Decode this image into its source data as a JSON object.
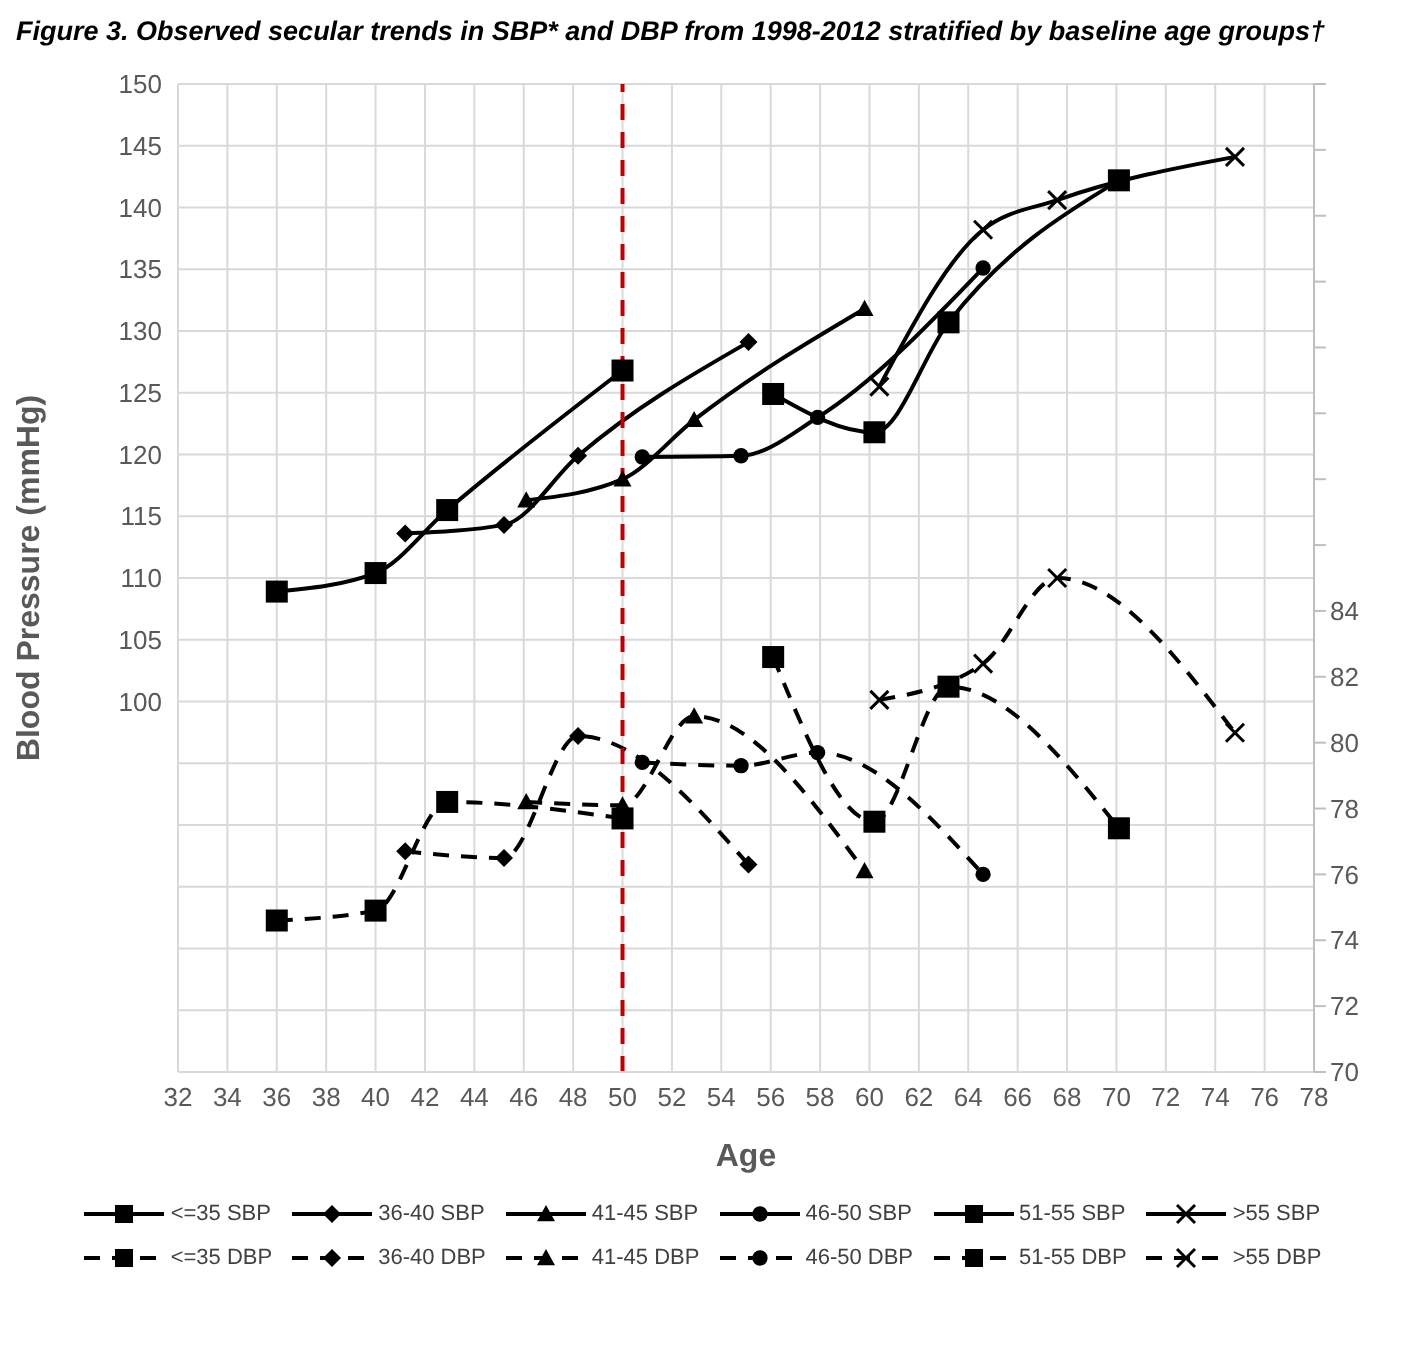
{
  "chart_data": {
    "type": "line",
    "title": "Figure 3. Observed secular trends in SBP* and DBP from 1998-2012 stratified by baseline age groups†",
    "xlabel": "Age",
    "ylabel": "Blood Pressure (mmHg)",
    "xlim": [
      32,
      78
    ],
    "xticks": [
      32,
      34,
      36,
      38,
      40,
      42,
      44,
      46,
      48,
      50,
      52,
      54,
      56,
      58,
      60,
      62,
      64,
      66,
      68,
      70,
      72,
      74,
      76,
      78
    ],
    "ylim": [
      70,
      150
    ],
    "yticks": [
      {
        "value": 70,
        "label": null
      },
      {
        "value": 75,
        "label": null
      },
      {
        "value": 80,
        "label": null
      },
      {
        "value": 85,
        "label": null
      },
      {
        "value": 90,
        "label": null
      },
      {
        "value": 95,
        "label": null
      },
      100,
      105,
      110,
      115,
      120,
      125,
      130,
      135,
      140,
      145,
      150
    ],
    "y2lim": [
      70,
      100
    ],
    "y2ticks": [
      70,
      72,
      74,
      76,
      78,
      80,
      82,
      84,
      {
        "value": 86,
        "label": null
      },
      {
        "value": 88,
        "label": null
      },
      {
        "value": 90,
        "label": null
      },
      {
        "value": 92,
        "label": null
      },
      {
        "value": 94,
        "label": null
      },
      {
        "value": 96,
        "label": null
      },
      {
        "value": 98,
        "label": null
      },
      {
        "value": 100,
        "label": null
      }
    ],
    "grid": true,
    "legend": "bottom",
    "ref_lines": [
      {
        "axis": "x",
        "value": 50,
        "color": "#c00000",
        "line_style": "dashed"
      }
    ],
    "series": [
      {
        "name": "<=35 SBP",
        "color": "#000000",
        "marker": "square",
        "line_style": "solid",
        "x": [
          36,
          40,
          42.9,
          50
        ],
        "values": [
          108.9,
          110.4,
          115.5,
          126.8
        ]
      },
      {
        "name": "36-40 SBP",
        "color": "#000000",
        "marker": "diamond",
        "line_style": "solid",
        "x": [
          41.2,
          45.2,
          48.2,
          55.1
        ],
        "values": [
          113.6,
          114.3,
          119.9,
          129.1
        ]
      },
      {
        "name": "41-45 SBP",
        "color": "#000000",
        "marker": "triangle",
        "line_style": "solid",
        "x": [
          46.1,
          50,
          52.9,
          59.8
        ],
        "values": [
          116.3,
          118,
          122.8,
          131.8
        ]
      },
      {
        "name": "46-50 SBP",
        "color": "#000000",
        "marker": "circle",
        "line_style": "solid",
        "x": [
          50.8,
          54.8,
          57.9,
          64.6
        ],
        "values": [
          119.8,
          119.9,
          123,
          135.1
        ]
      },
      {
        "name": "51-55 SBP",
        "color": "#000000",
        "marker": "square",
        "line_style": "solid",
        "x": [
          56.1,
          60.2,
          63.2,
          70.1
        ],
        "values": [
          124.9,
          121.8,
          130.7,
          142.2
        ]
      },
      {
        "name": ">55 SBP",
        "color": "#000000",
        "marker": "cross",
        "line_style": "solid",
        "x": [
          60.4,
          64.6,
          67.6,
          74.8
        ],
        "values": [
          125.5,
          138.2,
          140.6,
          144.1
        ]
      },
      {
        "name": "<=35 DBP",
        "color": "#000000",
        "marker": "square",
        "line_style": "dashed",
        "axis": "y2",
        "x": [
          36,
          40,
          42.9,
          50
        ],
        "values": [
          74.6,
          74.9,
          78.2,
          77.7
        ]
      },
      {
        "name": "36-40 DBP",
        "color": "#000000",
        "marker": "diamond",
        "line_style": "dashed",
        "axis": "y2",
        "x": [
          41.2,
          45.2,
          48.2,
          55.1
        ],
        "values": [
          76.7,
          76.5,
          80.2,
          76.3
        ]
      },
      {
        "name": "41-45 DBP",
        "color": "#000000",
        "marker": "triangle",
        "line_style": "dashed",
        "axis": "y2",
        "x": [
          46.1,
          50,
          52.9,
          59.8
        ],
        "values": [
          78.2,
          78.1,
          80.8,
          76.1
        ]
      },
      {
        "name": "46-50 DBP",
        "color": "#000000",
        "marker": "circle",
        "line_style": "dashed",
        "axis": "y2",
        "x": [
          50.8,
          54.8,
          57.9,
          64.6
        ],
        "values": [
          79.4,
          79.3,
          79.7,
          76
        ]
      },
      {
        "name": "51-55 DBP",
        "color": "#000000",
        "marker": "square",
        "line_style": "dashed",
        "axis": "y2",
        "x": [
          56.1,
          60.2,
          63.2,
          70.1
        ],
        "values": [
          82.6,
          77.6,
          81.7,
          77.4
        ]
      },
      {
        "name": ">55 DBP",
        "color": "#000000",
        "marker": "cross",
        "line_style": "dashed",
        "axis": "y2",
        "x": [
          60.4,
          64.6,
          67.6,
          74.8
        ],
        "values": [
          81.3,
          82.4,
          85,
          80.3
        ]
      }
    ]
  }
}
